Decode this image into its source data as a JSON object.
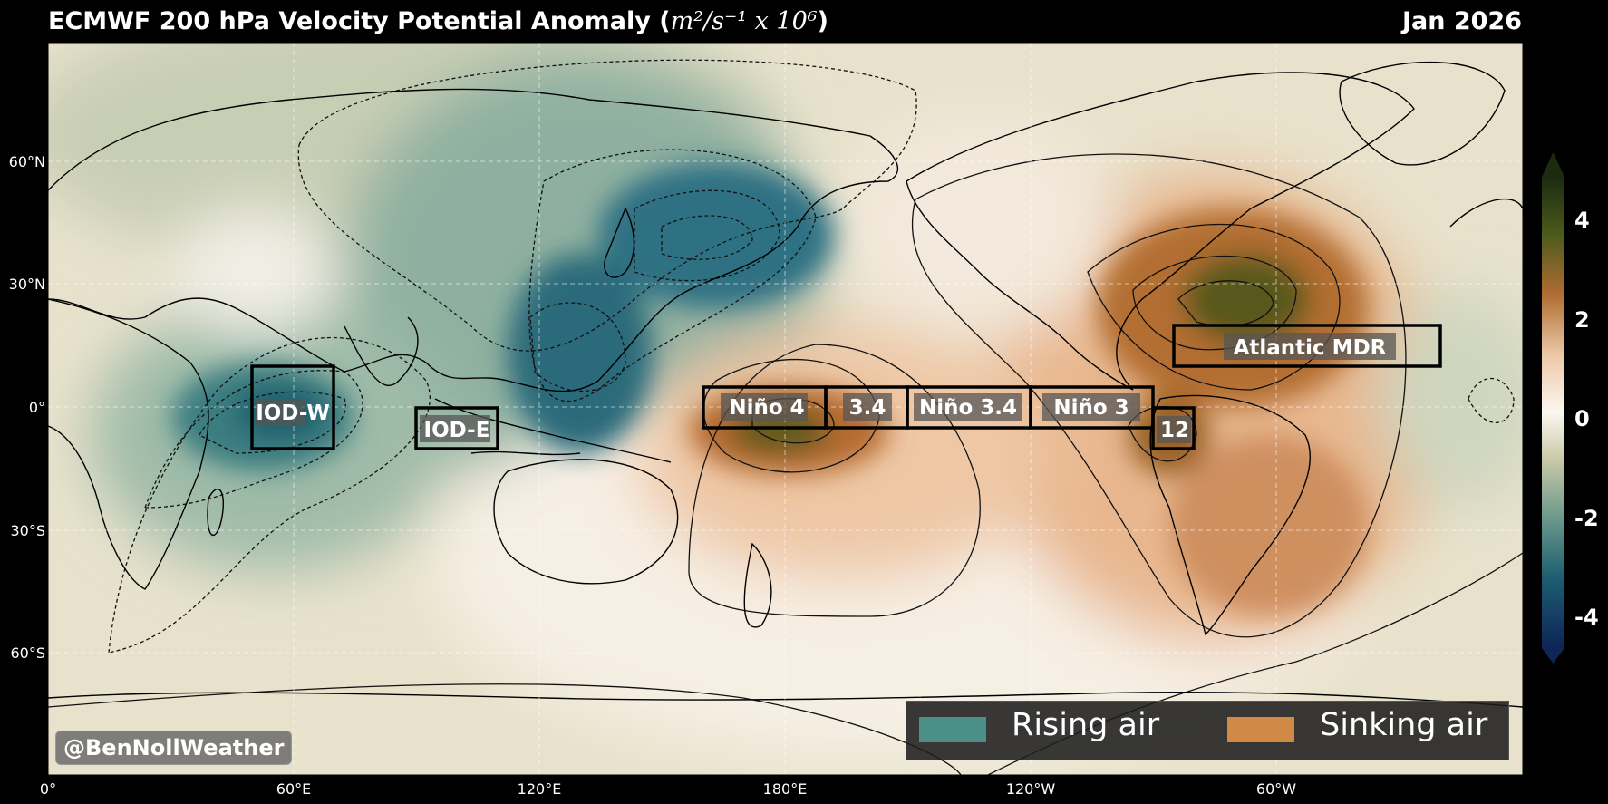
{
  "title": {
    "prefix": "ECMWF 200 hPa Velocity Potential Anomaly (",
    "units": "m²/s⁻¹ x 10⁶",
    "suffix": ")",
    "date": "Jan 2026"
  },
  "axes": {
    "lon_labels": [
      "0°",
      "60°E",
      "120°E",
      "180°E",
      "120°W",
      "60°W"
    ],
    "lat_labels": [
      "60°N",
      "30°N",
      "0°",
      "30°S",
      "60°S"
    ]
  },
  "regions": [
    {
      "name": "IOD-W"
    },
    {
      "name": "IOD-E"
    },
    {
      "name": "Niño 4"
    },
    {
      "name": "3.4"
    },
    {
      "name": "Niño 3.4"
    },
    {
      "name": "Niño 3"
    },
    {
      "name": "12"
    },
    {
      "name": "Atlantic MDR"
    }
  ],
  "legend": {
    "rising_label": "Rising air",
    "sinking_label": "Sinking air",
    "rising_color": "#4a8f88",
    "sinking_color": "#d18a45"
  },
  "colorbar": {
    "ticks": [
      "4",
      "2",
      "0",
      "-2",
      "-4"
    ]
  },
  "credit": "@BenNollWeather"
}
